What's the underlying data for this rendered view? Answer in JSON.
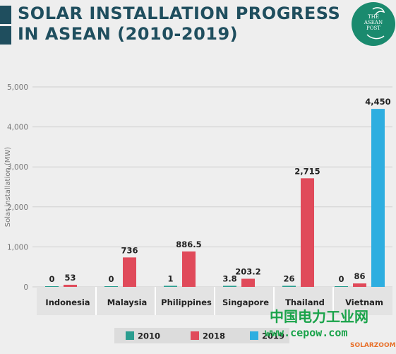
{
  "title": {
    "line1": "SOLAR INSTALLATION PROGRESS",
    "line2": "IN ASEAN (2010-2019)"
  },
  "logo": {
    "line1": "THE",
    "line2": "ASEAN",
    "line3": "POST"
  },
  "watermark": {
    "cn_text": "中国电力工业网",
    "url": "www.cepow.com",
    "solar": "SOLARZOOM"
  },
  "colors": {
    "2010": "#2a9d8f",
    "2018": "#e04a5a",
    "2019": "#2eaee0",
    "title": "#1f4e5e"
  },
  "chart_data": {
    "type": "bar",
    "ylabel": "Solar installation (MW)",
    "xlabel": "",
    "ylim": [
      0,
      5000
    ],
    "yticks": [
      "0",
      "1,000",
      "2,000",
      "3,000",
      "4,000",
      "5,000"
    ],
    "grid": true,
    "legend_position": "bottom",
    "categories": [
      "Indonesia",
      "Malaysia",
      "Philippines",
      "Singapore",
      "Thailand",
      "Vietnam"
    ],
    "series": [
      {
        "name": "2010",
        "values": [
          0,
          0,
          1,
          3.8,
          26,
          0
        ],
        "labels": [
          "0",
          "0",
          "1",
          "3.8",
          "26",
          "0"
        ]
      },
      {
        "name": "2018",
        "values": [
          53,
          736,
          886.5,
          203.2,
          2715,
          86
        ],
        "labels": [
          "53",
          "736",
          "886.5",
          "203.2",
          "2,715",
          "86"
        ]
      },
      {
        "name": "2019",
        "values": [
          null,
          null,
          null,
          null,
          null,
          4450
        ],
        "labels": [
          "",
          "",
          "",
          "",
          "",
          "4,450"
        ]
      }
    ]
  }
}
